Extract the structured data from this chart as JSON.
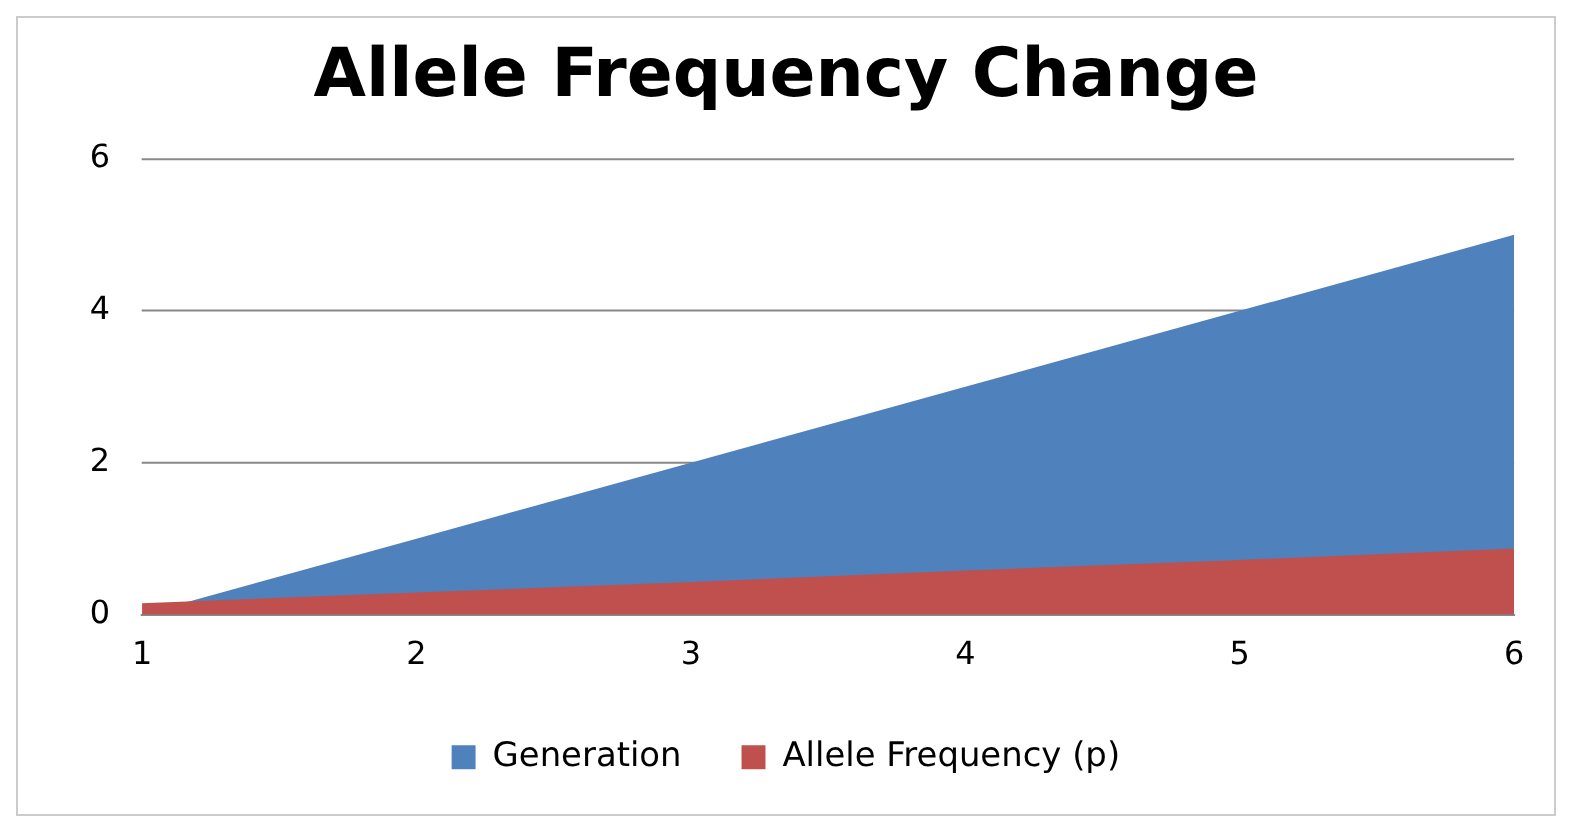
{
  "chart_data": {
    "type": "area",
    "title": "Allele Frequency Change",
    "categories": [
      "1",
      "2",
      "3",
      "4",
      "5",
      "6"
    ],
    "series": [
      {
        "name": "Generation",
        "color": "#4f81bd",
        "values": [
          0,
          1,
          2,
          3,
          4,
          5
        ]
      },
      {
        "name": "Allele Frequency (p)",
        "color": "#c0504d",
        "values": [
          0.15,
          0.29,
          0.43,
          0.58,
          0.72,
          0.87
        ]
      }
    ],
    "ylim": [
      0,
      6
    ],
    "yticks": [
      0,
      2,
      4,
      6
    ],
    "grid": "y",
    "legend": "bottom"
  }
}
